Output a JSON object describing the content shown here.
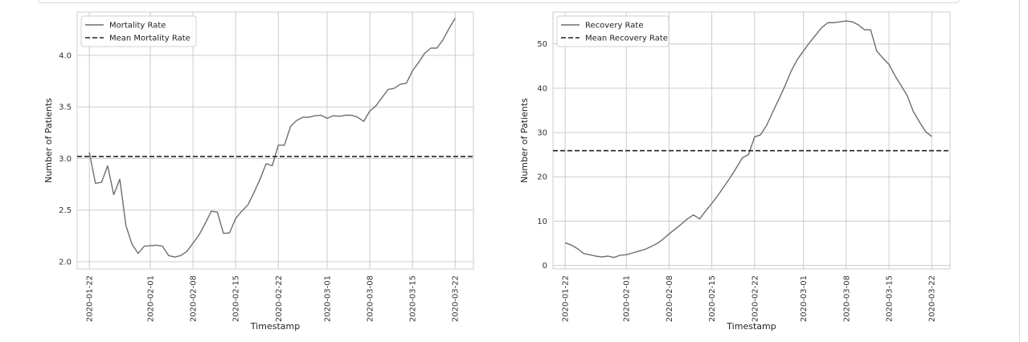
{
  "chart_data": [
    {
      "type": "line",
      "xlabel": "Timestamp",
      "ylabel": "Number of Patients",
      "ylim": [
        1.93,
        4.42
      ],
      "xlim": [
        "2020-01-20",
        "2020-03-25"
      ],
      "x_ticks": [
        "2020-01-22",
        "2020-02-01",
        "2020-02-08",
        "2020-02-15",
        "2020-02-22",
        "2020-03-01",
        "2020-03-08",
        "2020-03-15",
        "2020-03-22"
      ],
      "y_ticks": [
        "2.0",
        "2.5",
        "3.0",
        "3.5",
        "4.0"
      ],
      "grid": true,
      "legend_position": "upper-left",
      "x_start": "2020-01-22",
      "x_end": "2020-03-22",
      "series": [
        {
          "name": "Mortality Rate",
          "color": "#6e6e6e",
          "style": "solid",
          "values": [
            3.06,
            2.76,
            2.77,
            2.93,
            2.65,
            2.8,
            2.35,
            2.17,
            2.08,
            2.15,
            2.155,
            2.16,
            2.15,
            2.06,
            2.045,
            2.06,
            2.1,
            2.18,
            2.26,
            2.37,
            2.49,
            2.48,
            2.275,
            2.28,
            2.42,
            2.49,
            2.55,
            2.67,
            2.8,
            2.95,
            2.93,
            3.13,
            3.13,
            3.31,
            3.37,
            3.4,
            3.4,
            3.415,
            3.42,
            3.39,
            3.415,
            3.41,
            3.42,
            3.42,
            3.4,
            3.36,
            3.46,
            3.51,
            3.59,
            3.67,
            3.68,
            3.72,
            3.73,
            3.85,
            3.93,
            4.02,
            4.07,
            4.07,
            4.15,
            4.26,
            4.36
          ]
        },
        {
          "name": "Mean Mortality Rate",
          "color": "#222222",
          "style": "dashed",
          "value": 3.02
        }
      ]
    },
    {
      "type": "line",
      "xlabel": "Timestamp",
      "ylabel": "Number of Patients",
      "ylim": [
        -0.8,
        57.2
      ],
      "xlim": [
        "2020-01-20",
        "2020-03-25"
      ],
      "x_ticks": [
        "2020-01-22",
        "2020-02-01",
        "2020-02-08",
        "2020-02-15",
        "2020-02-22",
        "2020-03-01",
        "2020-03-08",
        "2020-03-15",
        "2020-03-22"
      ],
      "y_ticks": [
        "0",
        "10",
        "20",
        "30",
        "40",
        "50"
      ],
      "grid": true,
      "legend_position": "upper-left",
      "x_start": "2020-01-22",
      "x_end": "2020-03-22",
      "series": [
        {
          "name": "Recovery Rate",
          "color": "#6e6e6e",
          "style": "solid",
          "values": [
            5.1,
            4.6,
            3.8,
            2.7,
            2.4,
            2.1,
            1.9,
            2.1,
            1.8,
            2.3,
            2.4,
            2.8,
            3.2,
            3.6,
            4.2,
            4.9,
            5.9,
            7.1,
            8.2,
            9.3,
            10.5,
            11.4,
            10.5,
            12.3,
            14.0,
            15.8,
            17.8,
            19.8,
            22.0,
            24.3,
            25.0,
            29.0,
            29.5,
            31.7,
            34.7,
            37.6,
            40.6,
            43.9,
            46.5,
            48.4,
            50.3,
            52.0,
            53.7,
            54.8,
            54.8,
            55.0,
            55.2,
            55.0,
            54.3,
            53.2,
            53.2,
            48.4,
            46.8,
            45.4,
            42.8,
            40.6,
            38.3,
            34.7,
            32.4,
            30.2,
            29.1
          ]
        },
        {
          "name": "Mean Recovery Rate",
          "color": "#222222",
          "style": "dashed",
          "value": 25.9
        }
      ]
    }
  ]
}
